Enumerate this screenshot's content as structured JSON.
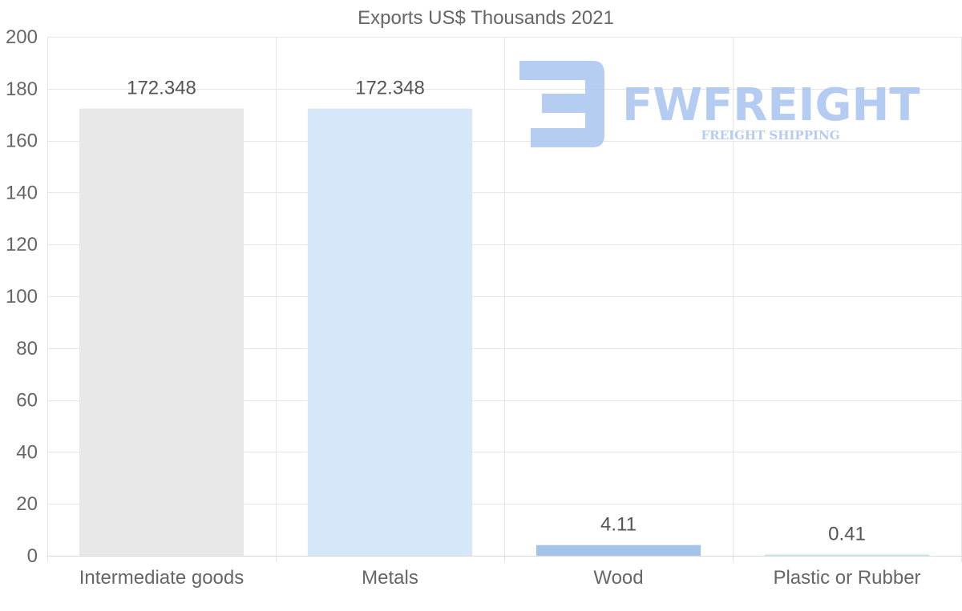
{
  "chart_data": {
    "type": "bar",
    "title": "Exports US$ Thousands 2021",
    "categories": [
      "Intermediate goods",
      "Metals",
      "Wood",
      "Plastic or Rubber"
    ],
    "values": [
      172.348,
      172.348,
      4.11,
      0.41
    ],
    "value_labels": [
      "172.348",
      "172.348",
      "4.11",
      "0.41"
    ],
    "colors": [
      "#e8e8e8",
      "#d6e7f9",
      "#a3c4e8",
      "#bfe6ec"
    ],
    "ylim": [
      0,
      200
    ],
    "yticks": [
      0,
      20,
      40,
      60,
      80,
      100,
      120,
      140,
      160,
      180,
      200
    ],
    "xlabel": "",
    "ylabel": "",
    "grid": true,
    "legend": false
  },
  "watermark": {
    "brand": "FWFREIGHT",
    "tagline": "FREIGHT SHIPPING",
    "color": "#a9c4f0"
  }
}
